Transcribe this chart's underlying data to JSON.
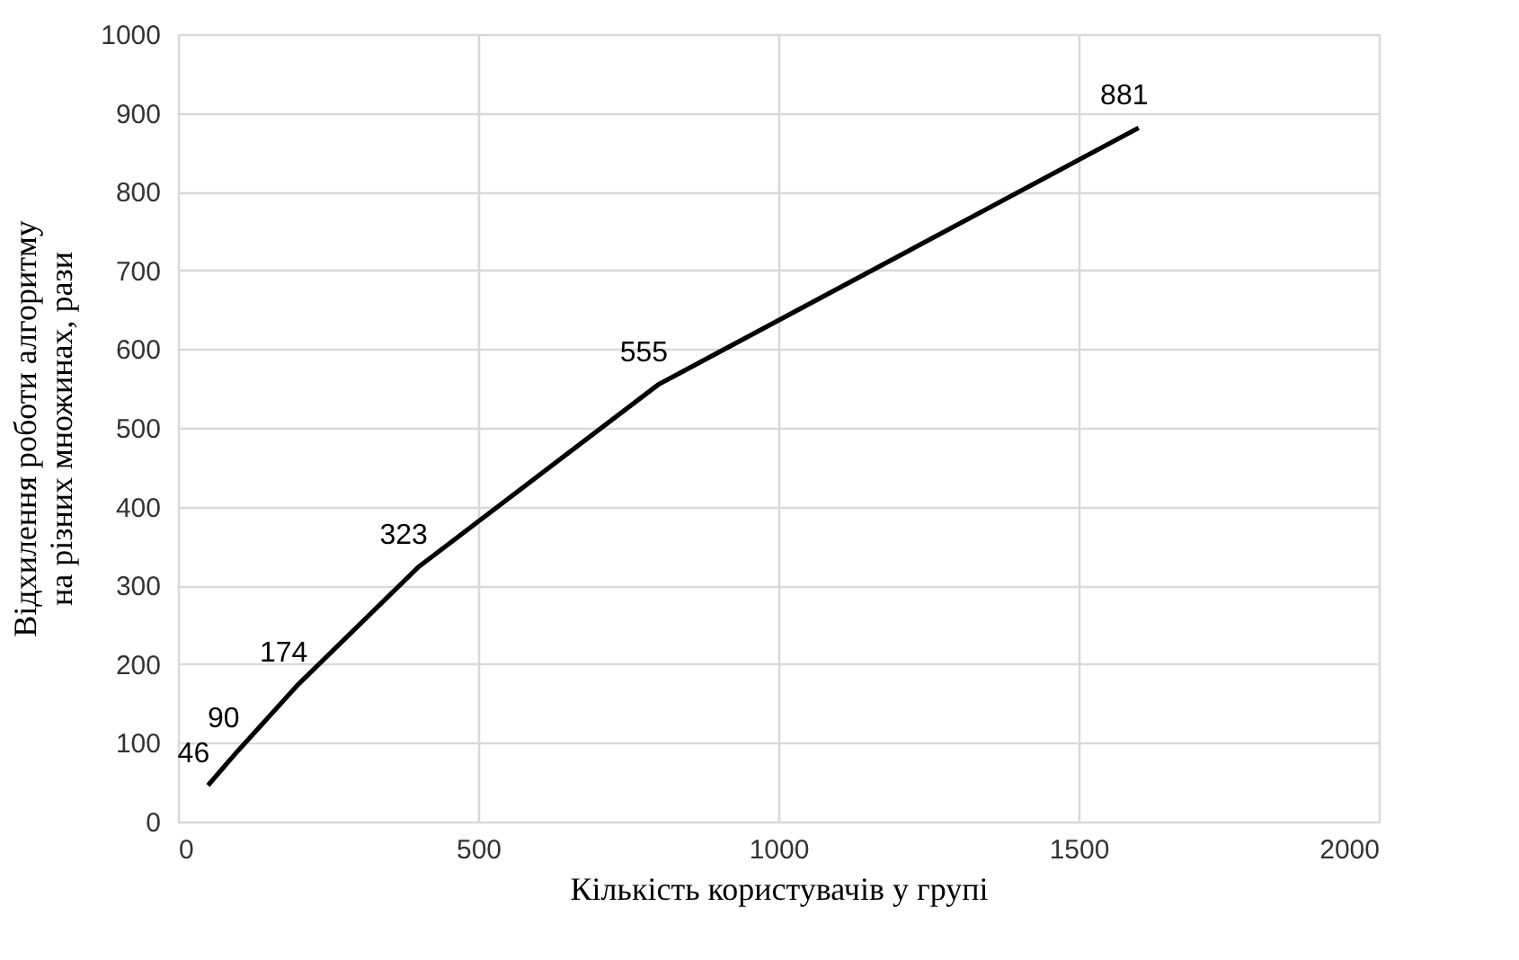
{
  "chart_data": {
    "type": "line",
    "xlabel": "Кількість користувачів у групі",
    "ylabel": "Відхилення роботи алгоритму\nна різних множинах, рази",
    "x": [
      50,
      100,
      200,
      400,
      800,
      1600
    ],
    "series": [
      {
        "color": "#000000",
        "values": [
          46,
          90,
          174,
          323,
          555,
          881
        ]
      }
    ],
    "xlim": [
      0,
      2000
    ],
    "xticks": [
      0,
      500,
      1000,
      1500,
      2000
    ],
    "ylim": [
      0,
      1000
    ],
    "yticks": [
      0,
      100,
      200,
      300,
      400,
      500,
      600,
      700,
      800,
      900,
      1000
    ],
    "grid": true,
    "marker": "none",
    "line_style": "solid",
    "data_labels": true
  }
}
